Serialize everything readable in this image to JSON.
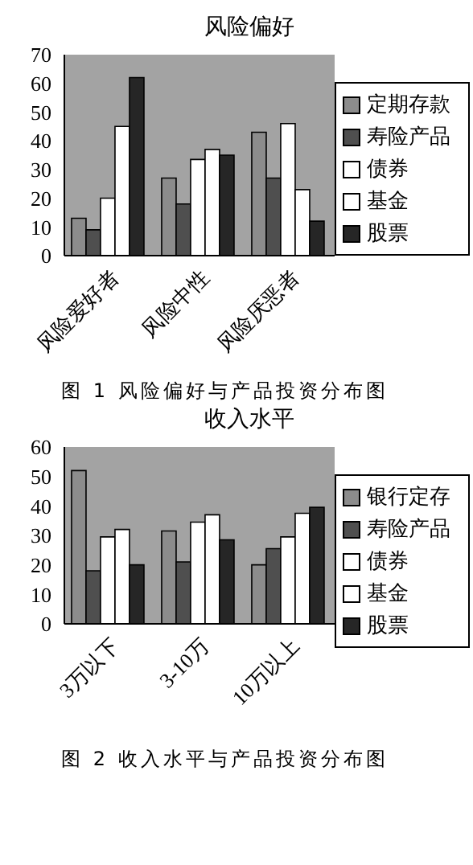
{
  "chart_data": [
    {
      "type": "bar",
      "title": "风险偏好",
      "categories": [
        "风险爱好者",
        "风险中性",
        "风险厌恶者"
      ],
      "series": [
        {
          "name": "定期存款",
          "color": "#8c8c8c",
          "values": [
            13,
            27,
            43
          ]
        },
        {
          "name": "寿险产品",
          "color": "#4f4f4f",
          "values": [
            9,
            18,
            27
          ]
        },
        {
          "name": "债券",
          "color": "#ffffff",
          "values": [
            20,
            33.5,
            46
          ]
        },
        {
          "name": "基金",
          "color": "#ffffff",
          "values": [
            45,
            37,
            23
          ]
        },
        {
          "name": "股票",
          "color": "#262626",
          "values": [
            62,
            35,
            12
          ]
        }
      ],
      "ylim": [
        0,
        70
      ],
      "yticks": [
        0,
        10,
        20,
        30,
        40,
        50,
        60,
        70
      ],
      "grid": false,
      "legend": "right",
      "annotations": [
        "图 1 风险偏好与产品投资分布图"
      ]
    },
    {
      "type": "bar",
      "title": "收入水平",
      "categories": [
        "3万以下",
        "3-10万",
        "10万以上"
      ],
      "series": [
        {
          "name": "银行定存",
          "color": "#8c8c8c",
          "values": [
            52,
            31.5,
            20
          ]
        },
        {
          "name": "寿险产品",
          "color": "#4f4f4f",
          "values": [
            18,
            21,
            25.5
          ]
        },
        {
          "name": "债券",
          "color": "#ffffff",
          "values": [
            29.5,
            34.5,
            29.5
          ]
        },
        {
          "name": "基金",
          "color": "#ffffff",
          "values": [
            32,
            37,
            37.5
          ]
        },
        {
          "name": "股票",
          "color": "#262626",
          "values": [
            20,
            28.5,
            39.5
          ]
        }
      ],
      "ylim": [
        0,
        60
      ],
      "yticks": [
        0,
        10,
        20,
        30,
        40,
        50,
        60
      ],
      "grid": false,
      "legend": "right",
      "annotations": [
        "图 2 收入水平与产品投资分布图"
      ]
    }
  ]
}
